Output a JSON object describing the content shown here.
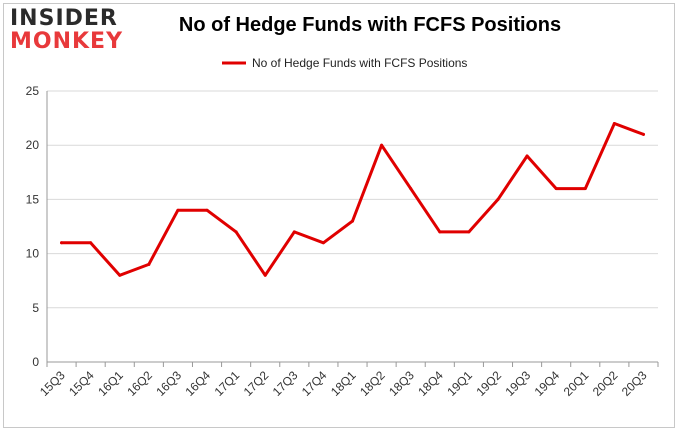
{
  "logo": {
    "line1": "INSIDER",
    "line2": "MONKEY"
  },
  "chart_data": {
    "type": "line",
    "title": "No of Hedge Funds with FCFS Positions",
    "xlabel": "",
    "ylabel": "",
    "categories": [
      "15Q3",
      "15Q4",
      "16Q1",
      "16Q2",
      "16Q3",
      "16Q4",
      "17Q1",
      "17Q2",
      "17Q3",
      "17Q4",
      "18Q1",
      "18Q2",
      "18Q3",
      "18Q4",
      "19Q1",
      "19Q2",
      "19Q3",
      "19Q4",
      "20Q1",
      "20Q2",
      "20Q3"
    ],
    "series": [
      {
        "name": "No of Hedge Funds with FCFS Positions",
        "values": [
          11,
          11,
          8,
          9,
          14,
          14,
          12,
          8,
          12,
          11,
          13,
          20,
          16,
          12,
          12,
          15,
          19,
          16,
          16,
          22,
          21
        ]
      }
    ],
    "ylim": [
      0,
      25
    ],
    "yticks": [
      0,
      5,
      10,
      15,
      20,
      25
    ],
    "grid": true,
    "legend": "top",
    "line_color": "#e00000"
  }
}
